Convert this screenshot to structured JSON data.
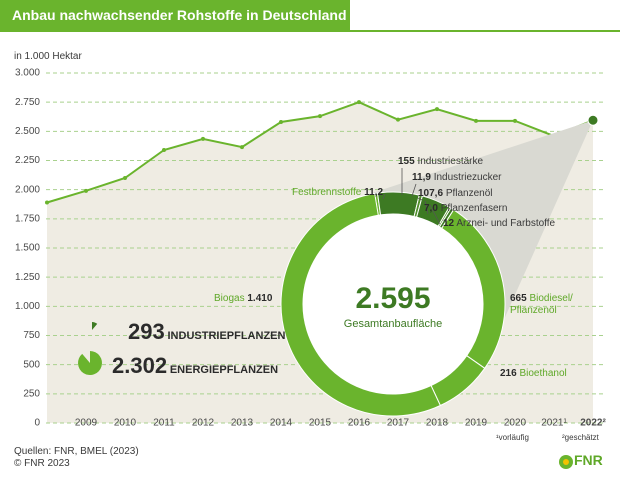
{
  "chart_data": [
    {
      "type": "line",
      "title": "Anbau nachwachsender Rohstoffe in Deutschland",
      "y_label": "in 1.000 Hektar",
      "categories": [
        null,
        "2009",
        "2010",
        "2011",
        "2012",
        "2013",
        "2014",
        "2015",
        "2016",
        "2017",
        "2018",
        "2019",
        "2020",
        "2021¹",
        "2022²"
      ],
      "series": [
        {
          "color": "#6ab42d",
          "values": [
            1890,
            1990,
            2100,
            2340,
            2435,
            2365,
            2580,
            2630,
            2750,
            2600,
            2690,
            2590,
            2590,
            2460,
            2595
          ]
        }
      ],
      "area_color": "#efece3",
      "ylim": [
        0,
        3000
      ],
      "yticks": [
        {
          "value": 3000,
          "label": "3.000"
        },
        {
          "value": 2750,
          "label": "2.750"
        },
        {
          "value": 2500,
          "label": "2.500"
        },
        {
          "value": 2250,
          "label": "2.250"
        },
        {
          "value": 2000,
          "label": "2.000"
        },
        {
          "value": 1750,
          "label": "1.750"
        },
        {
          "value": 1500,
          "label": "1.500"
        },
        {
          "value": 1250,
          "label": "1.250"
        },
        {
          "value": 1000,
          "label": "1.000"
        },
        750,
        500,
        250,
        0
      ],
      "grid": true,
      "footnotes": [
        "¹vorläufig",
        "²geschätzt"
      ],
      "source": [
        "Quellen: FNR, BMEL (2023)",
        "© FNR 2023"
      ],
      "logo": "FNR"
    },
    {
      "type": "pie",
      "donut": true,
      "total": 2595,
      "total_label": "2.595",
      "total_text": "Gesamtanbaufläche",
      "categories": [
        "Festbrennstoffe",
        "Industriestärke",
        "Industriezucker",
        "Pflanzenöl",
        "Pflanzenfasern",
        "Arznei- und Farbstoffe",
        "Biodiesel/ Pflanzenöl",
        "Bioethanol",
        "Biogas"
      ],
      "values": [
        11.2,
        155,
        11.9,
        107.6,
        7.0,
        12,
        665,
        216,
        1410
      ],
      "value_labels": [
        "11,2",
        "155",
        "11,9",
        "107,6",
        "7,0",
        "12",
        "665",
        "216",
        "1.410"
      ],
      "colors": [
        "#6ab42d",
        "#3d7a23",
        "#4f8f2a",
        "#3d7a23",
        "#4f8f2a",
        "#3d7a23",
        "#6ab42d",
        "#6ab42d",
        "#6ab42d"
      ],
      "groups": [
        {
          "name": "INDUSTRIEPFLANZEN",
          "value": 293,
          "color": "#3d7a23"
        },
        {
          "name": "ENERGIEPFLANZEN",
          "value": 2302,
          "value_label": "2.302",
          "color": "#6ab42d"
        }
      ]
    }
  ]
}
